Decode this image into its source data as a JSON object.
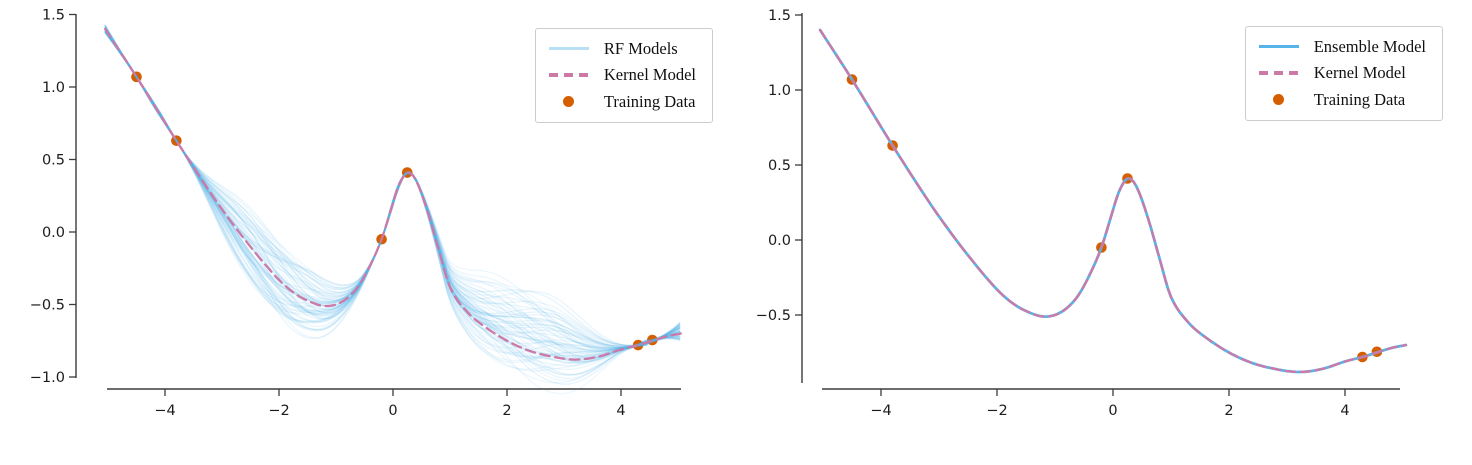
{
  "figure": {
    "background": "#ffffff",
    "spine_color": "#3b3b3b",
    "tick_label_color": "#1c1c1c"
  },
  "chart_data": [
    {
      "type": "line",
      "panel": "left",
      "title": "",
      "xlabel": "",
      "ylabel": "",
      "grid": false,
      "xlim": [
        -5.05,
        5.05
      ],
      "ylim": [
        -1.03,
        1.52
      ],
      "xticks": [
        -4,
        -2,
        0,
        2,
        4
      ],
      "xtick_labels": [
        "−4",
        "−2",
        "0",
        "2",
        "4"
      ],
      "yticks": [
        1.5,
        1.0,
        0.5,
        0.0,
        -0.5,
        -1.0
      ],
      "ytick_labels": [
        "1.5",
        "1.0",
        "0.5",
        "0.0",
        "−0.5",
        "−1.0"
      ],
      "legend": {
        "position": "upper right",
        "items": [
          {
            "label": "RF Models",
            "style": "line",
            "color": "#b9dff4"
          },
          {
            "label": "Kernel Model",
            "style": "dashed",
            "color": "#cc79a7"
          },
          {
            "label": "Training Data",
            "style": "dot",
            "color": "#d55e00"
          }
        ]
      },
      "series": [
        {
          "name": "Training Data",
          "type": "scatter",
          "color": "#d55e00",
          "marker_size": 5.3,
          "x": [
            -4.5,
            -3.8,
            -0.2,
            0.25,
            4.3,
            4.55
          ],
          "y": [
            1.07,
            0.63,
            -0.05,
            0.41,
            -0.78,
            -0.745
          ]
        },
        {
          "name": "RF Models",
          "type": "ensemble_band",
          "color": "#56b4e9",
          "base_opacity": 0.09,
          "count": 70,
          "seed": 20240613,
          "line_width": 1.3,
          "x_domain": [
            -5.05,
            5.05
          ],
          "gaps": [
            {
              "x0": -5.1,
              "x1": -4.5,
              "up": 0.03,
              "dn": 0.03,
              "open": "left"
            },
            {
              "x0": -4.5,
              "x1": -3.8,
              "up": 0.015,
              "dn": 0.015
            },
            {
              "x0": -3.8,
              "x1": -0.2,
              "up": 0.26,
              "dn": 0.27
            },
            {
              "x0": -0.2,
              "x1": 0.25,
              "up": 0.02,
              "dn": 0.02
            },
            {
              "x0": 0.25,
              "x1": 4.3,
              "up": 0.45,
              "dn": 0.18
            },
            {
              "x0": 4.3,
              "x1": 4.55,
              "up": 0.015,
              "dn": 0.015
            },
            {
              "x0": 4.55,
              "x1": 5.1,
              "up": 0.1,
              "dn": 0.06,
              "open": "right"
            }
          ]
        },
        {
          "name": "Kernel Model",
          "type": "line",
          "dash": true,
          "color": "#cc79a7",
          "width": 2.3,
          "x": [
            -5.05,
            -4.5,
            -3.8,
            -3.2,
            -2.8,
            -2.4,
            -2.0,
            -1.7,
            -1.4,
            -1.2,
            -1.0,
            -0.8,
            -0.6,
            -0.4,
            -0.2,
            0.0,
            0.1,
            0.25,
            0.4,
            0.6,
            0.8,
            1.0,
            1.3,
            1.6,
            2.0,
            2.4,
            2.8,
            3.2,
            3.6,
            4.0,
            4.3,
            4.55,
            4.8,
            5.05
          ],
          "y": [
            1.4,
            1.07,
            0.63,
            0.27,
            0.05,
            -0.15,
            -0.33,
            -0.43,
            -0.49,
            -0.51,
            -0.5,
            -0.455,
            -0.37,
            -0.23,
            -0.05,
            0.2,
            0.32,
            0.41,
            0.36,
            0.15,
            -0.12,
            -0.38,
            -0.55,
            -0.65,
            -0.75,
            -0.82,
            -0.86,
            -0.88,
            -0.86,
            -0.81,
            -0.78,
            -0.75,
            -0.72,
            -0.7
          ]
        }
      ]
    },
    {
      "type": "line",
      "panel": "right",
      "title": "",
      "xlabel": "",
      "ylabel": "",
      "grid": false,
      "xlim": [
        -5.05,
        5.05
      ],
      "ylim": [
        -0.95,
        1.52
      ],
      "xticks": [
        -4,
        -2,
        0,
        2,
        4
      ],
      "xtick_labels": [
        "−4",
        "−2",
        "0",
        "2",
        "4"
      ],
      "yticks": [
        1.5,
        1.0,
        0.5,
        0.0,
        -0.5
      ],
      "ytick_labels": [
        "1.5",
        "1.0",
        "0.5",
        "0.0",
        "−0.5"
      ],
      "legend": {
        "position": "upper right",
        "items": [
          {
            "label": "Ensemble Model",
            "style": "thick",
            "color": "#56b4e9"
          },
          {
            "label": "Kernel Model",
            "style": "dashed",
            "color": "#cc79a7"
          },
          {
            "label": "Training Data",
            "style": "dot",
            "color": "#d55e00"
          }
        ]
      },
      "series": [
        {
          "name": "Training Data",
          "type": "scatter",
          "color": "#d55e00",
          "marker_size": 5.3,
          "x": [
            -4.5,
            -3.8,
            -0.2,
            0.25,
            4.3,
            4.55
          ],
          "y": [
            1.07,
            0.63,
            -0.05,
            0.41,
            -0.78,
            -0.745
          ]
        },
        {
          "name": "Ensemble Model",
          "type": "line",
          "dash": false,
          "color": "#56b4e9",
          "width": 2.8,
          "x": [
            -5.05,
            -4.5,
            -3.8,
            -3.2,
            -2.8,
            -2.4,
            -2.0,
            -1.7,
            -1.4,
            -1.2,
            -1.0,
            -0.8,
            -0.6,
            -0.4,
            -0.2,
            0.0,
            0.1,
            0.25,
            0.4,
            0.6,
            0.8,
            1.0,
            1.3,
            1.6,
            2.0,
            2.4,
            2.8,
            3.2,
            3.6,
            4.0,
            4.3,
            4.55,
            4.8,
            5.05
          ],
          "y": [
            1.4,
            1.07,
            0.63,
            0.27,
            0.05,
            -0.15,
            -0.33,
            -0.43,
            -0.49,
            -0.51,
            -0.5,
            -0.455,
            -0.37,
            -0.23,
            -0.05,
            0.2,
            0.32,
            0.41,
            0.36,
            0.15,
            -0.12,
            -0.38,
            -0.55,
            -0.65,
            -0.75,
            -0.82,
            -0.86,
            -0.88,
            -0.86,
            -0.81,
            -0.78,
            -0.75,
            -0.72,
            -0.7
          ]
        },
        {
          "name": "Kernel Model",
          "type": "line",
          "dash": true,
          "color": "#cc79a7",
          "width": 2.3,
          "x": [
            -5.05,
            -4.5,
            -3.8,
            -3.2,
            -2.8,
            -2.4,
            -2.0,
            -1.7,
            -1.4,
            -1.2,
            -1.0,
            -0.8,
            -0.6,
            -0.4,
            -0.2,
            0.0,
            0.1,
            0.25,
            0.4,
            0.6,
            0.8,
            1.0,
            1.3,
            1.6,
            2.0,
            2.4,
            2.8,
            3.2,
            3.6,
            4.0,
            4.3,
            4.55,
            4.8,
            5.05
          ],
          "y": [
            1.4,
            1.07,
            0.63,
            0.27,
            0.05,
            -0.15,
            -0.33,
            -0.43,
            -0.49,
            -0.51,
            -0.5,
            -0.455,
            -0.37,
            -0.23,
            -0.05,
            0.2,
            0.32,
            0.41,
            0.36,
            0.15,
            -0.12,
            -0.38,
            -0.55,
            -0.65,
            -0.75,
            -0.82,
            -0.86,
            -0.88,
            -0.86,
            -0.81,
            -0.78,
            -0.75,
            -0.72,
            -0.7
          ]
        }
      ]
    }
  ]
}
